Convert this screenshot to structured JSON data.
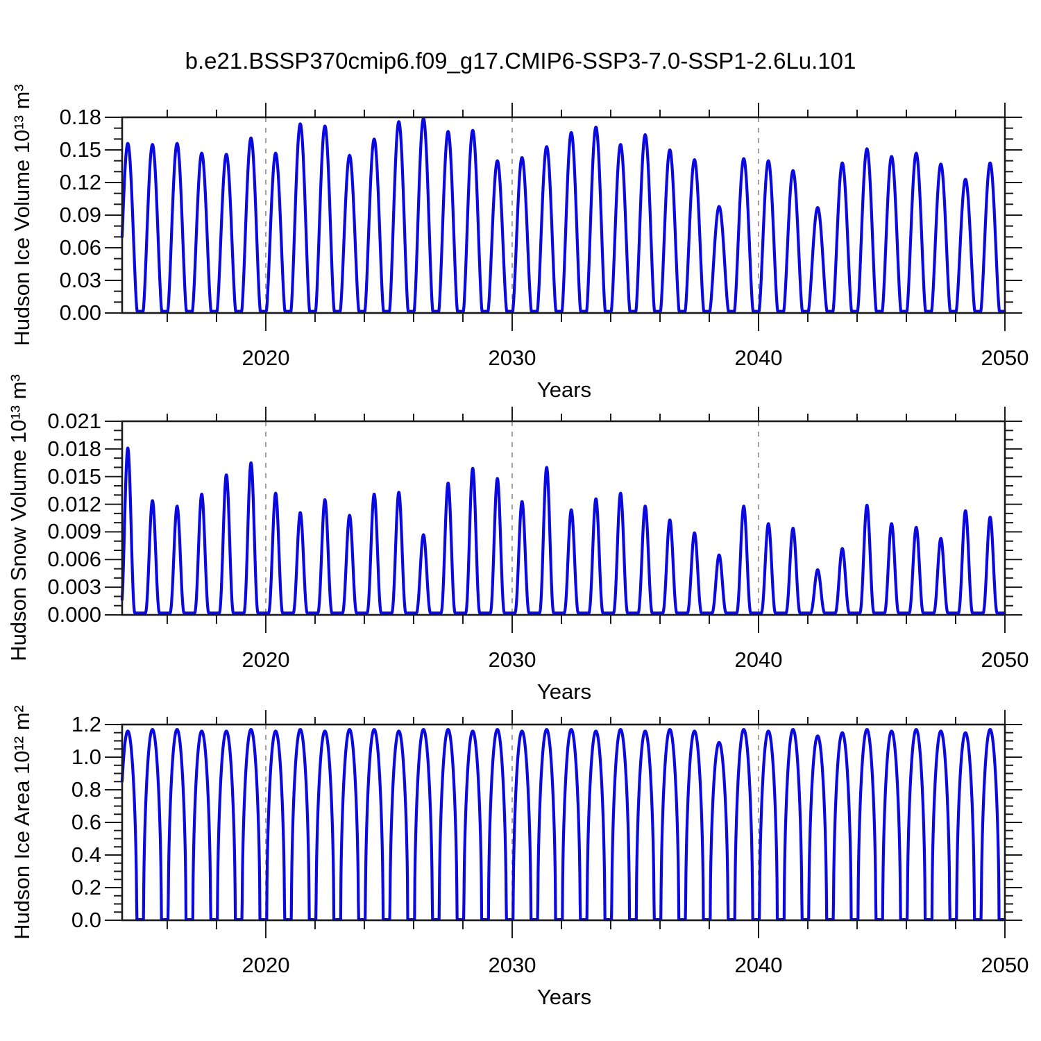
{
  "title": "b.e21.BSSP370cmip6.f09_g17.CMIP6-SSP3-7.0-SSP1-2.6Lu.101",
  "style": {
    "line_color": "#0a0ae0",
    "grid_color": "#979797",
    "axis_color": "#1a1a1a",
    "background": "#ffffff"
  },
  "x_axis": {
    "label": "Years",
    "range": [
      2014.17,
      2050
    ],
    "major_ticks": [
      2020,
      2030,
      2040,
      2050
    ],
    "major_tick_labels": [
      "2020",
      "2030",
      "2040",
      "2050"
    ],
    "minor_tick_step_years": 2,
    "gridlines_at": [
      2020,
      2030,
      2040
    ]
  },
  "chart_data": [
    {
      "type": "line",
      "series_name": "Hudson Ice Volume",
      "ylabel": "Hudson Ice Volume 10¹³ m³",
      "xlabel": "Years",
      "ylim": [
        0,
        0.18
      ],
      "y_ticks": [
        0.0,
        0.03,
        0.06,
        0.09,
        0.12,
        0.15,
        0.18
      ],
      "y_tick_labels": [
        "0.00",
        "0.03",
        "0.06",
        "0.09",
        "0.12",
        "0.15",
        "0.18"
      ],
      "y_minor_divisions": 3,
      "annual_cycle": {
        "first_peak_year": 2014.4,
        "period_years": 1,
        "pulse_width_years": 0.76,
        "pulse_shape_power": 1.5,
        "summer_min": 0.0015
      },
      "winter_peak_years_start": 2015,
      "winter_peak_values": [
        0.156,
        0.155,
        0.156,
        0.147,
        0.146,
        0.161,
        0.147,
        0.174,
        0.172,
        0.145,
        0.16,
        0.176,
        0.179,
        0.167,
        0.168,
        0.14,
        0.143,
        0.153,
        0.166,
        0.171,
        0.155,
        0.164,
        0.15,
        0.141,
        0.098,
        0.142,
        0.14,
        0.131,
        0.097,
        0.138,
        0.151,
        0.144,
        0.147,
        0.137,
        0.123,
        0.138
      ]
    },
    {
      "type": "line",
      "series_name": "Hudson Snow Volume",
      "ylabel": "Hudson Snow Volume 10¹³ m³",
      "xlabel": "Years",
      "ylim": [
        0,
        0.021
      ],
      "y_ticks": [
        0.0,
        0.003,
        0.006,
        0.009,
        0.012,
        0.015,
        0.018,
        0.021
      ],
      "y_tick_labels": [
        "0.000",
        "0.003",
        "0.006",
        "0.009",
        "0.012",
        "0.015",
        "0.018",
        "0.021"
      ],
      "y_minor_divisions": 3,
      "annual_cycle": {
        "first_peak_year": 2014.4,
        "period_years": 1,
        "pulse_width_years": 0.58,
        "pulse_shape_power": 2.2,
        "summer_min": 0.0002
      },
      "winter_peak_years_start": 2015,
      "winter_peak_values": [
        0.0181,
        0.0124,
        0.0118,
        0.0131,
        0.0152,
        0.0165,
        0.0132,
        0.0111,
        0.0125,
        0.0108,
        0.0131,
        0.0133,
        0.0087,
        0.0143,
        0.0159,
        0.0148,
        0.0123,
        0.016,
        0.0114,
        0.0126,
        0.0132,
        0.0118,
        0.0103,
        0.0089,
        0.0065,
        0.0118,
        0.0099,
        0.0094,
        0.0049,
        0.0072,
        0.0119,
        0.0099,
        0.0095,
        0.0083,
        0.0113,
        0.0106
      ]
    },
    {
      "type": "line",
      "series_name": "Hudson Ice Area",
      "ylabel": "Hudson Ice Area 10¹² m²",
      "xlabel": "Years",
      "ylim": [
        0,
        1.2
      ],
      "y_ticks": [
        0.0,
        0.2,
        0.4,
        0.6,
        0.8,
        1.0,
        1.2
      ],
      "y_tick_labels": [
        "0.0",
        "0.2",
        "0.4",
        "0.6",
        "0.8",
        "1.0",
        "1.2"
      ],
      "y_minor_divisions": 4,
      "annual_cycle": {
        "first_peak_year": 2014.4,
        "period_years": 1,
        "pulse_width_years": 0.72,
        "pulse_shape_power": 0.5,
        "summer_min": 0.004
      },
      "winter_peak_years_start": 2015,
      "winter_peak_values": [
        1.16,
        1.17,
        1.17,
        1.16,
        1.16,
        1.17,
        1.16,
        1.17,
        1.16,
        1.17,
        1.17,
        1.16,
        1.17,
        1.17,
        1.16,
        1.17,
        1.16,
        1.17,
        1.17,
        1.16,
        1.17,
        1.16,
        1.17,
        1.16,
        1.09,
        1.17,
        1.16,
        1.17,
        1.13,
        1.15,
        1.17,
        1.16,
        1.17,
        1.16,
        1.15,
        1.17
      ]
    }
  ]
}
